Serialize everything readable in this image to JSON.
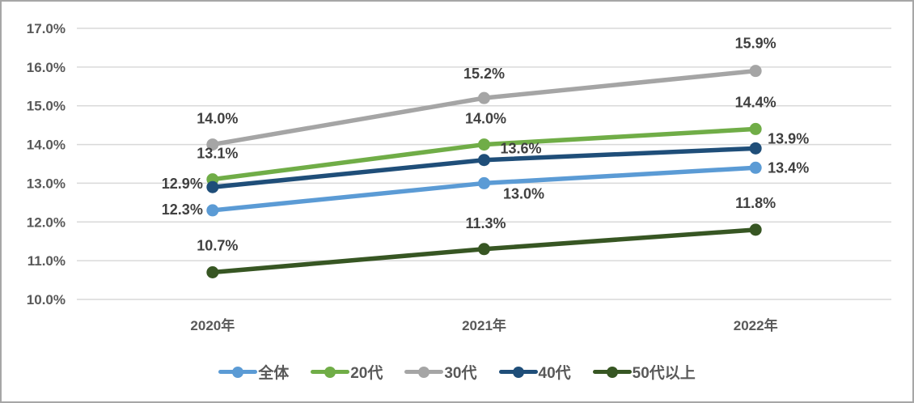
{
  "chart_data": {
    "type": "line",
    "title": "",
    "xlabel": "",
    "ylabel": "",
    "categories": [
      "2020年",
      "2021年",
      "2022年"
    ],
    "series": [
      {
        "id": "overall",
        "name": "全体",
        "color": "#5B9BD5",
        "values": [
          12.3,
          13.0,
          13.4
        ],
        "labels": [
          "12.3%",
          "13.0%",
          "13.4%"
        ]
      },
      {
        "id": "20s",
        "name": "20代",
        "color": "#70AD47",
        "values": [
          13.1,
          14.0,
          14.4
        ],
        "labels": [
          "13.1%",
          "14.0%",
          "14.4%"
        ]
      },
      {
        "id": "30s",
        "name": "30代",
        "color": "#A5A5A5",
        "values": [
          14.0,
          15.2,
          15.9
        ],
        "labels": [
          "14.0%",
          "15.2%",
          "15.9%"
        ]
      },
      {
        "id": "40s",
        "name": "40代",
        "color": "#1F4E79",
        "values": [
          12.9,
          13.6,
          13.9
        ],
        "labels": [
          "12.9%",
          "13.6%",
          "13.9%"
        ]
      },
      {
        "id": "50s-plus",
        "name": "50代以上",
        "color": "#375623",
        "values": [
          10.7,
          11.3,
          11.8
        ],
        "labels": [
          "10.7%",
          "11.3%",
          "11.8%"
        ]
      }
    ],
    "y_axis": {
      "min": 10.0,
      "max": 17.0,
      "step": 1.0,
      "tick_labels": [
        "10.0%",
        "11.0%",
        "12.0%",
        "13.0%",
        "14.0%",
        "15.0%",
        "16.0%",
        "17.0%"
      ]
    },
    "ylim": [
      10.0,
      17.0
    ],
    "grid": true,
    "legend_position": "bottom-center",
    "colors": {
      "gridline": "#D9D9D9",
      "axis_text": "#595959",
      "data_label_text": "#404040",
      "frame_border": "#A6A6A6",
      "background": "#FFFFFF"
    }
  }
}
